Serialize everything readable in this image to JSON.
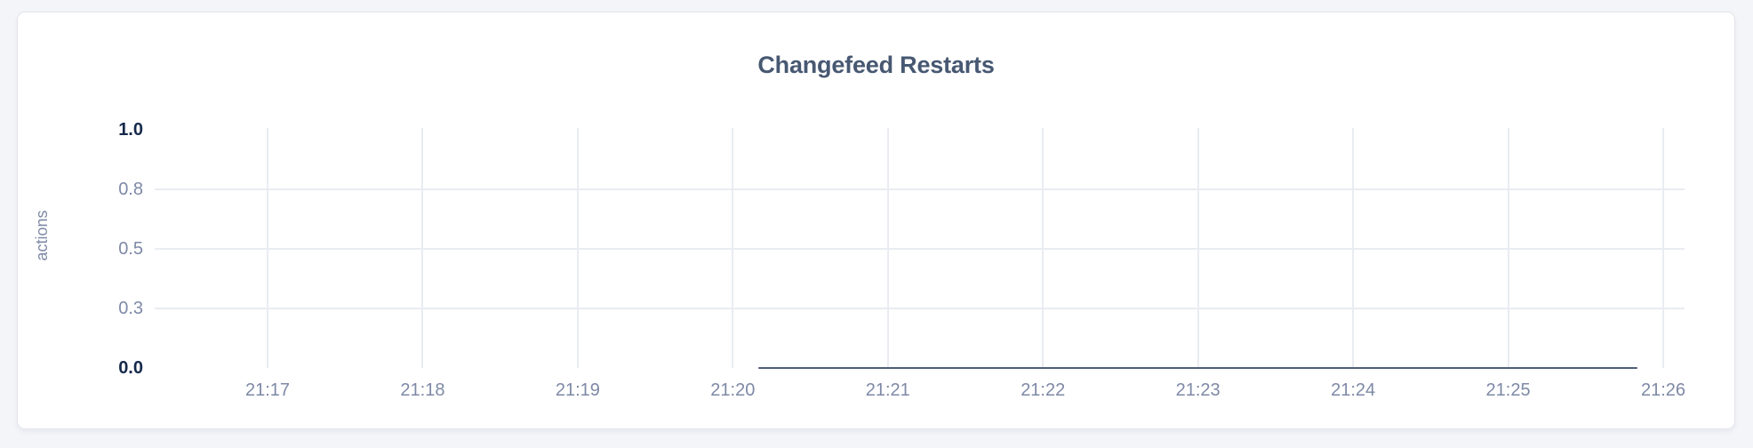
{
  "theme": {
    "page_background": "#f4f5f9",
    "card_background": "#ffffff",
    "card_border": "#e3e4e9",
    "title_color": "#475872",
    "axis_label_color": "#7e89a6",
    "emphasis_tick_color": "#16294b",
    "grid_color": "#e9ecf1",
    "line_color": "#4e5d78"
  },
  "chart_data": {
    "type": "line",
    "title": "Changefeed Restarts",
    "xlabel": "",
    "ylabel": "actions",
    "ylim": [
      0.0,
      1.0
    ],
    "grid": true,
    "legend": "none",
    "x_axis": {
      "start": "21:17:00",
      "end": "21:26:00",
      "tick_labels": [
        "21:17",
        "21:18",
        "21:19",
        "21:20",
        "21:21",
        "21:22",
        "21:23",
        "21:24",
        "21:25",
        "21:26"
      ]
    },
    "y_axis": {
      "ticks": [
        {
          "label": "1.0",
          "value": 1.0,
          "emphasis": true,
          "gridline": false
        },
        {
          "label": "0.8",
          "value": 0.75,
          "emphasis": false,
          "gridline": true
        },
        {
          "label": "0.5",
          "value": 0.5,
          "emphasis": false,
          "gridline": true
        },
        {
          "label": "0.3",
          "value": 0.25,
          "emphasis": false,
          "gridline": true
        },
        {
          "label": "0.0",
          "value": 0.0,
          "emphasis": true,
          "gridline": false
        }
      ]
    },
    "series": [
      {
        "name": "changefeed-restarts",
        "values_description": "flat at 0 actions for the whole reported window",
        "points": [
          {
            "t": "21:20:10",
            "v": 0
          },
          {
            "t": "21:25:50",
            "v": 0
          }
        ]
      }
    ]
  }
}
